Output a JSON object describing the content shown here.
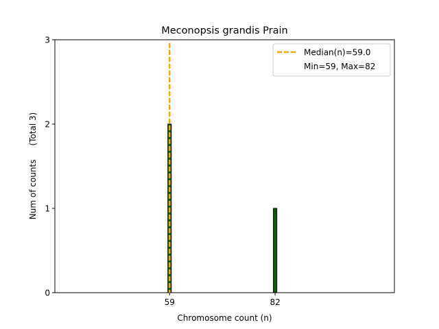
{
  "chart_data": {
    "type": "bar",
    "title": "Meconopsis grandis Prain",
    "xlabel": "Chromosome count (n)",
    "ylabel": "Num of counts",
    "ylabel_total": "(Total 3)",
    "xlim": [
      34,
      108
    ],
    "ylim": [
      0,
      3
    ],
    "yticks": [
      0,
      1,
      2,
      3
    ],
    "xticks": [
      59,
      82
    ],
    "series": [
      {
        "name": "counts",
        "x": [
          59,
          82
        ],
        "values": [
          2,
          1
        ],
        "color": "#006400"
      }
    ],
    "median": {
      "value": 59.0,
      "color": "#ffa500"
    },
    "legend": {
      "position": "top-right",
      "entries": [
        "Median(n)=59.0",
        "Min=59, Max=82"
      ]
    },
    "grid": false
  }
}
